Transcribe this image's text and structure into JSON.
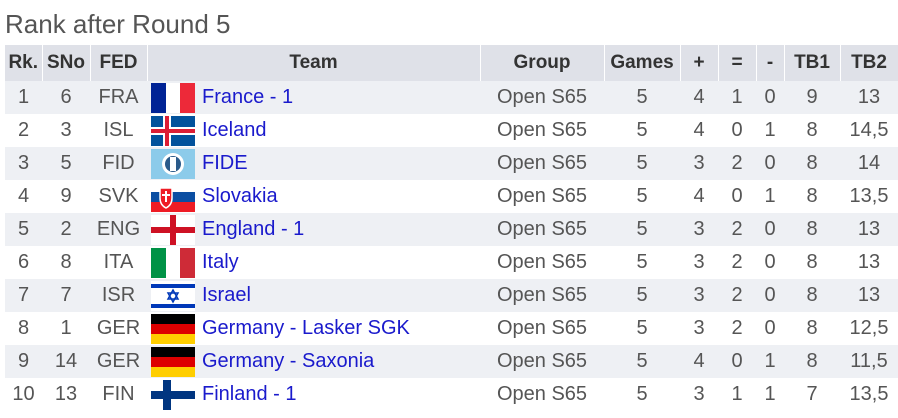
{
  "title": "Rank after Round 5",
  "table": {
    "header": [
      "Rk.",
      "SNo",
      "FED",
      "Team",
      "Group",
      "Games",
      "+",
      "=",
      "-",
      "TB1",
      "TB2"
    ],
    "rows": [
      [
        "1",
        "6",
        "FRA",
        "France - 1",
        "Open S65",
        "5",
        "4",
        "1",
        "0",
        "9",
        "13"
      ],
      [
        "2",
        "3",
        "ISL",
        "Iceland",
        "Open S65",
        "5",
        "4",
        "0",
        "1",
        "8",
        "14,5"
      ],
      [
        "3",
        "5",
        "FID",
        "FIDE",
        "Open S65",
        "5",
        "3",
        "2",
        "0",
        "8",
        "14"
      ],
      [
        "4",
        "9",
        "SVK",
        "Slovakia",
        "Open S65",
        "5",
        "4",
        "0",
        "1",
        "8",
        "13,5"
      ],
      [
        "5",
        "2",
        "ENG",
        "England - 1",
        "Open S65",
        "5",
        "3",
        "2",
        "0",
        "8",
        "13"
      ],
      [
        "6",
        "8",
        "ITA",
        "Italy",
        "Open S65",
        "5",
        "3",
        "2",
        "0",
        "8",
        "13"
      ],
      [
        "7",
        "7",
        "ISR",
        "Israel",
        "Open S65",
        "5",
        "3",
        "2",
        "0",
        "8",
        "13"
      ],
      [
        "8",
        "1",
        "GER",
        "Germany - Lasker SGK",
        "Open S65",
        "5",
        "3",
        "2",
        "0",
        "8",
        "12,5"
      ],
      [
        "9",
        "14",
        "GER",
        "Germany - Saxonia",
        "Open S65",
        "5",
        "4",
        "0",
        "1",
        "8",
        "11,5"
      ],
      [
        "10",
        "13",
        "FIN",
        "Finland - 1",
        "Open S65",
        "5",
        "3",
        "1",
        "1",
        "7",
        "13,5"
      ]
    ]
  }
}
